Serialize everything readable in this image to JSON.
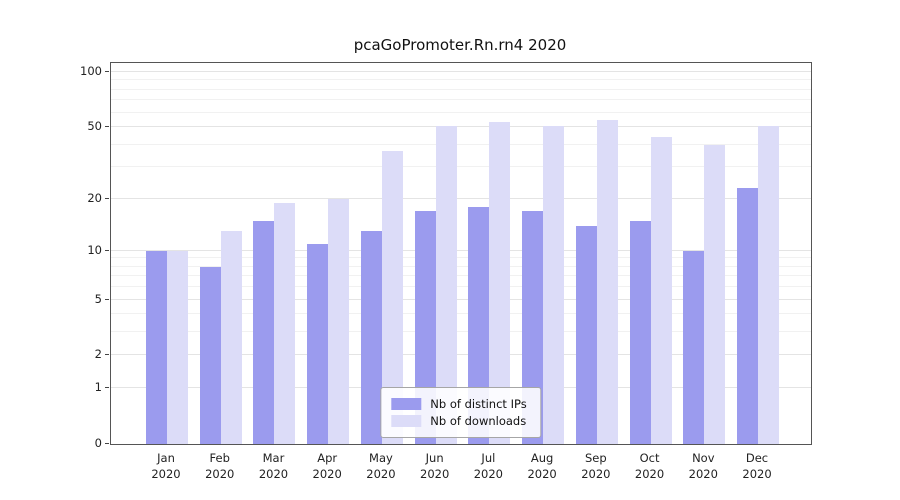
{
  "title": "pcaGoPromoter.Rn.rn4 2020",
  "colors": {
    "ips": "#9b9bee",
    "downloads": "#dcdcf8",
    "grid_major": "#e4e4e4",
    "grid_minor": "#f1f1f1",
    "axis": "#555555"
  },
  "legend": {
    "items": [
      {
        "label": "Nb of distinct IPs",
        "series": "ips"
      },
      {
        "label": "Nb of downloads",
        "series": "downloads"
      }
    ]
  },
  "chart_data": {
    "type": "bar",
    "title": "pcaGoPromoter.Rn.rn4 2020",
    "year": "2020",
    "categories": [
      "Jan",
      "Feb",
      "Mar",
      "Apr",
      "May",
      "Jun",
      "Jul",
      "Aug",
      "Sep",
      "Oct",
      "Nov",
      "Dec"
    ],
    "series": [
      {
        "name": "Nb of distinct IPs",
        "values": [
          10,
          8,
          15,
          11,
          13,
          17,
          18,
          17,
          14,
          15,
          10,
          23
        ]
      },
      {
        "name": "Nb of downloads",
        "values": [
          10,
          13,
          19,
          20,
          37,
          51,
          53,
          51,
          55,
          44,
          40,
          51
        ]
      }
    ],
    "yticks": [
      0,
      1,
      2,
      5,
      10,
      20,
      50,
      100
    ],
    "scale": "log10(1+y)",
    "ylim": [
      0,
      113
    ],
    "grid": true,
    "legend_position": "lower center",
    "xlabel": "",
    "ylabel": ""
  }
}
